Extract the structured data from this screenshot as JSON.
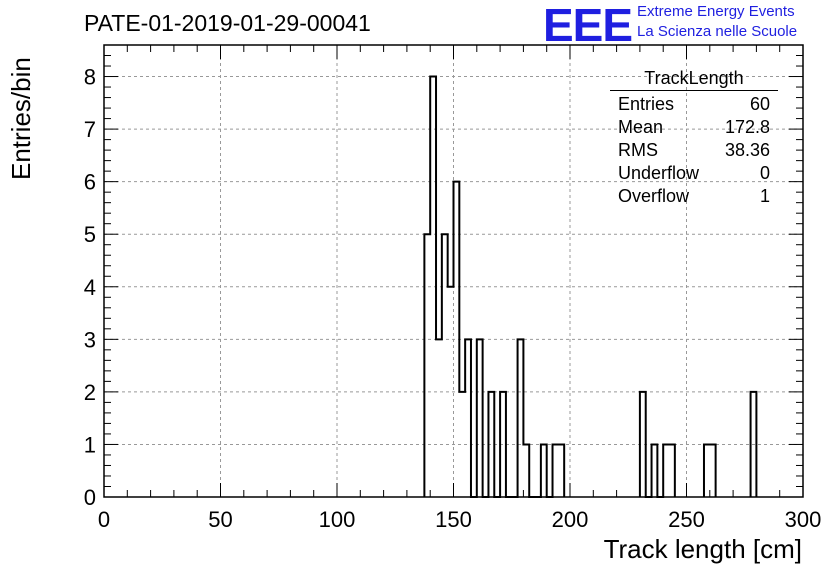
{
  "header": {
    "title": "PATE-01-2019-01-29-00041"
  },
  "logo": {
    "mark": "EEE",
    "line1": "Extreme Energy Events",
    "line2": "La Scienza nelle Scuole",
    "color": "#1f1fe0"
  },
  "stats_box": {
    "name": "TrackLength",
    "rows": [
      {
        "label": "Entries",
        "value": "60"
      },
      {
        "label": "Mean",
        "value": "172.8"
      },
      {
        "label": "RMS",
        "value": "38.36"
      },
      {
        "label": "Underflow",
        "value": "0"
      },
      {
        "label": "Overflow",
        "value": "1"
      }
    ]
  },
  "chart_data": {
    "type": "histogram",
    "xlabel": "Track length [cm]",
    "ylabel": "Entries/bin",
    "xlim": [
      0,
      300
    ],
    "ylim": [
      0,
      8.6
    ],
    "grid": true,
    "bin_width": 2.5,
    "x_ticks": [
      0,
      50,
      100,
      150,
      200,
      250,
      300
    ],
    "y_ticks": [
      0,
      1,
      2,
      3,
      4,
      5,
      6,
      7,
      8
    ],
    "bins": [
      {
        "x": 137.5,
        "y": 5
      },
      {
        "x": 140,
        "y": 8
      },
      {
        "x": 142.5,
        "y": 3
      },
      {
        "x": 145,
        "y": 5
      },
      {
        "x": 147.5,
        "y": 4
      },
      {
        "x": 150,
        "y": 6
      },
      {
        "x": 152.5,
        "y": 2
      },
      {
        "x": 155,
        "y": 3
      },
      {
        "x": 157.5,
        "y": 0
      },
      {
        "x": 160,
        "y": 3
      },
      {
        "x": 162.5,
        "y": 0
      },
      {
        "x": 165,
        "y": 2
      },
      {
        "x": 167.5,
        "y": 0
      },
      {
        "x": 170,
        "y": 2
      },
      {
        "x": 172.5,
        "y": 0
      },
      {
        "x": 175,
        "y": 0
      },
      {
        "x": 177.5,
        "y": 3
      },
      {
        "x": 180,
        "y": 1
      },
      {
        "x": 182.5,
        "y": 0
      },
      {
        "x": 185,
        "y": 0
      },
      {
        "x": 187.5,
        "y": 1
      },
      {
        "x": 190,
        "y": 0
      },
      {
        "x": 192.5,
        "y": 1
      },
      {
        "x": 195,
        "y": 1
      },
      {
        "x": 230,
        "y": 2
      },
      {
        "x": 232.5,
        "y": 0
      },
      {
        "x": 235,
        "y": 1
      },
      {
        "x": 237.5,
        "y": 0
      },
      {
        "x": 240,
        "y": 1
      },
      {
        "x": 242.5,
        "y": 1
      },
      {
        "x": 257.5,
        "y": 1
      },
      {
        "x": 260,
        "y": 1
      },
      {
        "x": 277.5,
        "y": 2
      }
    ]
  }
}
